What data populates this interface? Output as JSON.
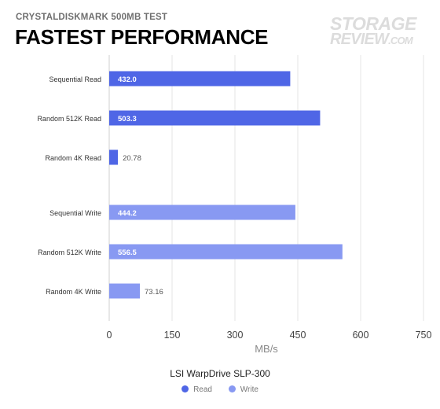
{
  "header": {
    "subtitle": "CRYSTALDISKMARK 500MB TEST",
    "title": "FASTEST PERFORMANCE"
  },
  "logo": {
    "line1": "STORAGE",
    "line2": "REVIEW",
    "line2_suffix": ".COM"
  },
  "chart_data": {
    "type": "bar",
    "orientation": "horizontal",
    "categories": [
      "Sequential Read",
      "Random 512K Read",
      "Random 4K Read",
      "Sequential Write",
      "Random 512K Write",
      "Random 4K Write"
    ],
    "values": [
      432.0,
      503.3,
      20.78,
      444.2,
      556.5,
      73.16
    ],
    "value_labels": [
      "432.0",
      "503.3",
      "20.78",
      "444.2",
      "556.5",
      "73.16"
    ],
    "series_of_bar": [
      "Read",
      "Read",
      "Read",
      "Write",
      "Write",
      "Write"
    ],
    "series": [
      {
        "name": "Read",
        "color": "#4f66e6"
      },
      {
        "name": "Write",
        "color": "#8899f2"
      }
    ],
    "title": "LSI WarpDrive SLP-300",
    "xlabel": "MB/s",
    "xlim": [
      0,
      750
    ],
    "xticks": [
      0,
      150,
      300,
      450,
      600,
      750
    ],
    "grid": true,
    "legend_position": "bottom"
  }
}
